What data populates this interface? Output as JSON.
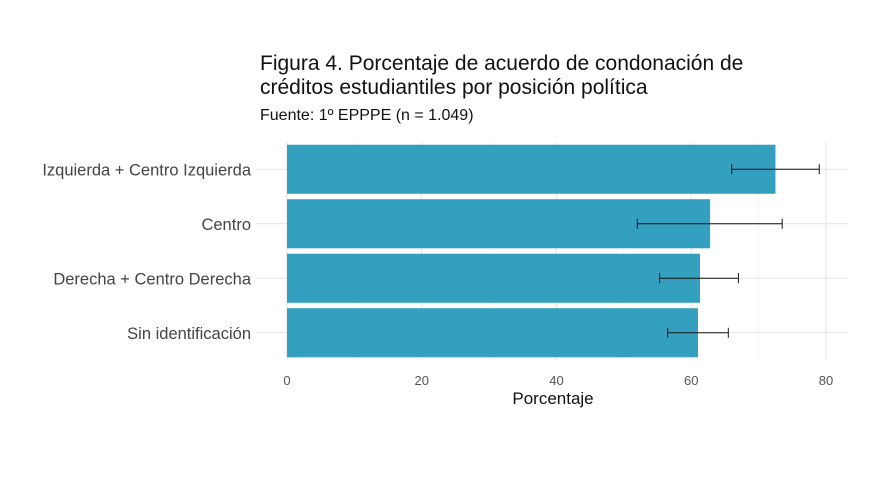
{
  "chart_data": {
    "type": "bar",
    "orientation": "horizontal",
    "title": "Figura 4. Porcentaje de acuerdo de condonación de créditos estudiantiles por posición política",
    "subtitle": "Fuente: 1º EPPPE (n = 1.049)",
    "xlabel": "Porcentaje",
    "ylabel": "",
    "categories": [
      "Izquierda + Centro Izquierda",
      "Centro",
      "Derecha + Centro Derecha",
      "Sin identificación"
    ],
    "values": [
      72.5,
      62.8,
      61.3,
      61.0
    ],
    "error_low": [
      66.0,
      52.0,
      55.3,
      56.5
    ],
    "error_high": [
      79.0,
      73.5,
      67.0,
      65.5
    ],
    "xlim": [
      0,
      83
    ],
    "xticks": [
      0,
      20,
      40,
      60,
      80
    ],
    "grid": true,
    "legend": "none",
    "bar_color": "#33a0c0",
    "error_color": "#111111"
  }
}
